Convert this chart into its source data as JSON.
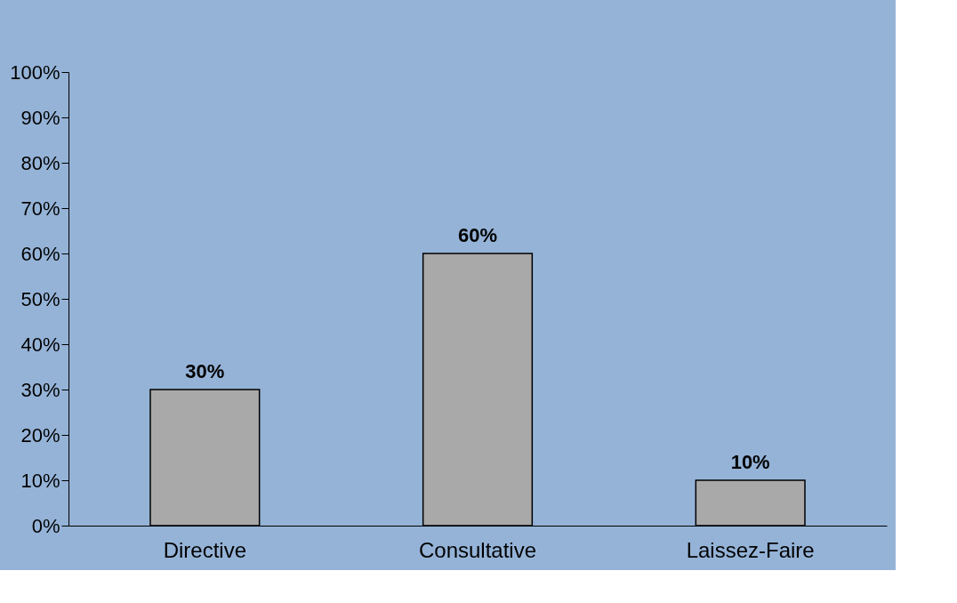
{
  "chart_data": {
    "type": "bar",
    "categories": [
      "Directive",
      "Consultative",
      "Laissez-Faire"
    ],
    "values": [
      30,
      60,
      10
    ],
    "color": "#a9a9a9",
    "value_labels": [
      "30%",
      "60%",
      "10%"
    ],
    "ylim": [
      0,
      100
    ],
    "yticks": [
      {
        "value": 0,
        "label": "0%"
      },
      {
        "value": 10,
        "label": "10%"
      },
      {
        "value": 20,
        "label": "20%"
      },
      {
        "value": 30,
        "label": "30%"
      },
      {
        "value": 40,
        "label": "40%"
      },
      {
        "value": 50,
        "label": "50%"
      },
      {
        "value": 60,
        "label": "60%"
      },
      {
        "value": 70,
        "label": "70%"
      },
      {
        "value": 80,
        "label": "80%"
      },
      {
        "value": 90,
        "label": "90%"
      },
      {
        "value": 100,
        "label": "100%"
      }
    ],
    "grid": false
  }
}
